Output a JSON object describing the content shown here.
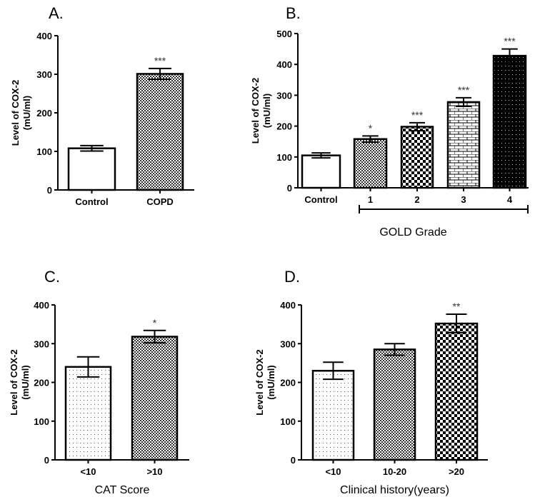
{
  "chart_data": [
    {
      "type": "bar",
      "panel": "A.",
      "ylabel_line1": "Level of COX-2",
      "ylabel_line2": "(mU/ml)",
      "xlabel": "",
      "ylim": [
        0,
        400
      ],
      "yticks": [
        0,
        100,
        200,
        300,
        400
      ],
      "categories": [
        "Control",
        "COPD"
      ],
      "values": [
        108,
        301
      ],
      "errors": [
        7,
        14
      ],
      "significance": [
        "",
        "***"
      ],
      "patterns": [
        "white",
        "fine-check"
      ]
    },
    {
      "type": "bar",
      "panel": "B.",
      "ylabel_line1": "Level of COX-2",
      "ylabel_line2": "(mU/ml)",
      "xlabel": "GOLD Grade",
      "ylim": [
        0,
        500
      ],
      "yticks": [
        0,
        100,
        200,
        300,
        400,
        500
      ],
      "categories": [
        "Control",
        "1",
        "2",
        "3",
        "4"
      ],
      "values": [
        105,
        158,
        198,
        278,
        428
      ],
      "errors": [
        8,
        10,
        13,
        14,
        22
      ],
      "significance": [
        "",
        "*",
        "***",
        "***",
        "***"
      ],
      "patterns": [
        "white",
        "fine-check",
        "check",
        "brick",
        "black-dots"
      ]
    },
    {
      "type": "bar",
      "panel": "C.",
      "ylabel_line1": "Level of COX-2",
      "ylabel_line2": "(mU/ml)",
      "xlabel": "CAT Score",
      "ylim": [
        0,
        400
      ],
      "yticks": [
        0,
        100,
        200,
        300,
        400
      ],
      "categories": [
        "<10",
        ">10"
      ],
      "values": [
        240,
        318
      ],
      "errors": [
        26,
        16
      ],
      "significance": [
        "",
        "*"
      ],
      "patterns": [
        "dots",
        "fine-check"
      ]
    },
    {
      "type": "bar",
      "panel": "D.",
      "ylabel_line1": "Level of COX-2",
      "ylabel_line2": "(mU/ml)",
      "xlabel": "Clinical history(years)",
      "ylim": [
        0,
        400
      ],
      "yticks": [
        0,
        100,
        200,
        300,
        400
      ],
      "categories": [
        "<10",
        "10-20",
        ">20"
      ],
      "values": [
        230,
        285,
        352
      ],
      "errors": [
        22,
        15,
        24
      ],
      "significance": [
        "",
        "",
        "**"
      ],
      "patterns": [
        "dots",
        "fine-check",
        "check"
      ]
    }
  ]
}
